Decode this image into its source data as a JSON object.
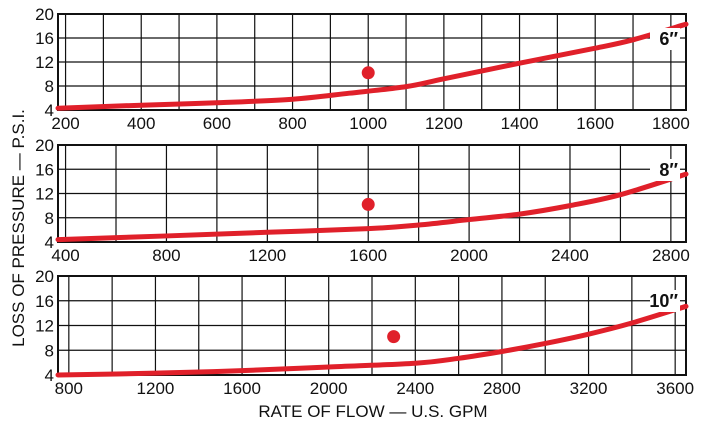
{
  "ylabel": "LOSS OF PRESSURE — P.S.I.",
  "xlabel": "RATE OF FLOW — U.S. GPM",
  "colors": {
    "curve": "#e0202a",
    "point": "#e0202a",
    "grid": "#111111"
  },
  "chart_data": [
    {
      "type": "line",
      "label": "6″",
      "x_ticks": [
        "200",
        "400",
        "600",
        "800",
        "1000",
        "1200",
        "1400",
        "1600",
        "1800"
      ],
      "y_ticks": [
        "4",
        "8",
        "12",
        "16",
        "20"
      ],
      "xlim": [
        180,
        1840
      ],
      "ylim": [
        4,
        20
      ],
      "grid": true,
      "series": [
        {
          "x": [
            180,
            400,
            600,
            800,
            950,
            1100,
            1200,
            1400,
            1600,
            1700,
            1840
          ],
          "y": [
            4.3,
            4.8,
            5.2,
            5.8,
            6.8,
            7.9,
            9.2,
            11.8,
            14.3,
            15.7,
            18.3
          ]
        }
      ],
      "point": {
        "x": 1000,
        "y": 10.2
      }
    },
    {
      "type": "line",
      "label": "8″",
      "x_ticks": [
        "400",
        "800",
        "1200",
        "1600",
        "2000",
        "2400",
        "2800"
      ],
      "y_ticks": [
        "4",
        "8",
        "12",
        "16",
        "20"
      ],
      "xlim": [
        370,
        2860
      ],
      "ylim": [
        4,
        20
      ],
      "grid": true,
      "series": [
        {
          "x": [
            370,
            800,
            1200,
            1600,
            1800,
            2000,
            2200,
            2400,
            2600,
            2860
          ],
          "y": [
            4.4,
            5.0,
            5.6,
            6.2,
            6.8,
            7.7,
            8.6,
            10.0,
            11.8,
            15.2
          ]
        }
      ],
      "point": {
        "x": 1600,
        "y": 10.2
      }
    },
    {
      "type": "line",
      "label": "10″",
      "x_ticks": [
        "800",
        "1200",
        "1600",
        "2000",
        "2400",
        "2800",
        "3200",
        "3600"
      ],
      "y_ticks": [
        "4",
        "8",
        "12",
        "16",
        "20"
      ],
      "xlim": [
        750,
        3650
      ],
      "ylim": [
        4,
        20
      ],
      "grid": true,
      "series": [
        {
          "x": [
            750,
            1200,
            1600,
            2000,
            2400,
            2600,
            2800,
            3000,
            3200,
            3400,
            3650
          ],
          "y": [
            4.0,
            4.3,
            4.7,
            5.3,
            5.9,
            6.7,
            7.8,
            9.1,
            10.6,
            12.4,
            15.1
          ]
        }
      ],
      "point": {
        "x": 2300,
        "y": 10.2
      }
    }
  ]
}
